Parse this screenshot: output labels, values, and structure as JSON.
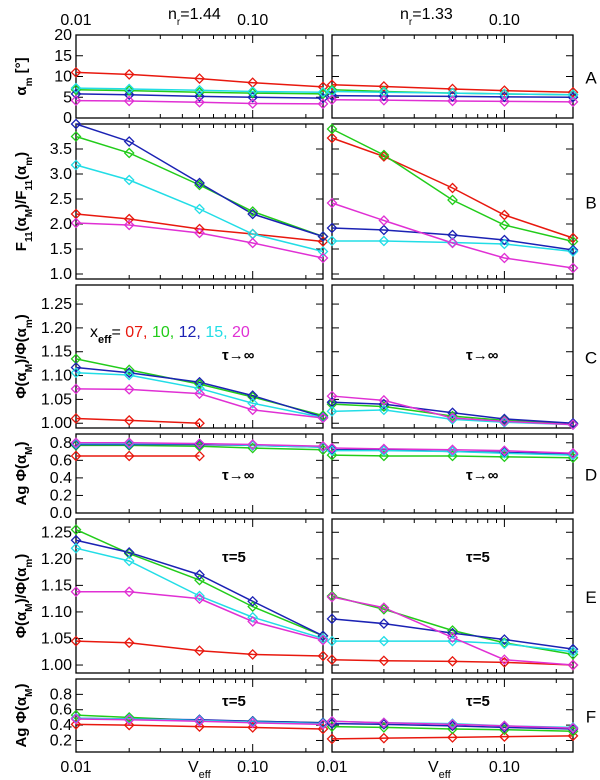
{
  "chart_data": {
    "type": "line",
    "x": [
      0.01,
      0.02,
      0.05,
      0.1,
      0.25
    ],
    "xscale": "log",
    "xlim": [
      0.01,
      0.25
    ],
    "xlabel_main": "V",
    "xlabel_sub": "eff",
    "xticks": [
      "0.01",
      "0.10"
    ],
    "columns": [
      {
        "label_main": "n",
        "label_sub": "r",
        "label_value": "=1.44"
      },
      {
        "label_main": "n",
        "label_sub": "r",
        "label_value": "=1.33"
      }
    ],
    "legend": {
      "prefix_main": "x",
      "prefix_sub": "eff",
      "prefix_eq": "=",
      "entries": [
        {
          "label": "07,",
          "color": "#e8180e"
        },
        {
          "label": "10,",
          "color": "#22cc1a"
        },
        {
          "label": "12,",
          "color": "#1b22b4"
        },
        {
          "label": "15,",
          "color": "#22dde6"
        },
        {
          "label": "20",
          "color": "#e030d4"
        }
      ]
    },
    "series_colors": [
      "#e8180e",
      "#22cc1a",
      "#1b22b4",
      "#22dde6",
      "#e030d4"
    ],
    "series_names": [
      "07",
      "10",
      "12",
      "15",
      "20"
    ],
    "panels": [
      {
        "letter": "A",
        "ylabel": "α_m [°]",
        "ylim": [
          0,
          20
        ],
        "yticks": [
          "0",
          "5",
          "10",
          "15",
          "20"
        ],
        "ytick_values": [
          0,
          5,
          10,
          15,
          20
        ],
        "annotation": "",
        "left": [
          [
            11.0,
            10.5,
            9.5,
            8.5,
            7.5
          ],
          [
            6.8,
            6.6,
            6.2,
            6.0,
            5.8
          ],
          [
            5.8,
            5.6,
            5.2,
            5.0,
            4.8
          ],
          [
            7.2,
            7.0,
            6.7,
            6.4,
            6.2
          ],
          [
            4.2,
            4.1,
            3.8,
            3.5,
            3.4
          ]
        ],
        "right": [
          [
            8.0,
            7.6,
            7.0,
            6.6,
            6.2
          ],
          [
            6.8,
            6.4,
            6.0,
            5.8,
            5.6
          ],
          [
            5.4,
            5.3,
            5.2,
            5.1,
            5.0
          ],
          [
            6.4,
            6.2,
            6.0,
            5.8,
            5.6
          ],
          [
            4.4,
            4.3,
            4.1,
            4.0,
            3.9
          ]
        ]
      },
      {
        "letter": "B",
        "ylabel": "F11(αM)/F11(αm)",
        "ylim": [
          0.9,
          4.0
        ],
        "yticks": [
          "1.0",
          "1.5",
          "2.0",
          "2.5",
          "3.0",
          "3.5"
        ],
        "ytick_values": [
          1.0,
          1.5,
          2.0,
          2.5,
          3.0,
          3.5
        ],
        "annotation": "",
        "left": [
          [
            2.2,
            2.1,
            1.9,
            1.8,
            1.65
          ],
          [
            3.75,
            3.42,
            2.78,
            2.25,
            1.75
          ],
          [
            4.0,
            3.65,
            2.82,
            2.2,
            1.75
          ],
          [
            3.18,
            2.88,
            2.3,
            1.8,
            1.45
          ],
          [
            2.02,
            1.98,
            1.82,
            1.62,
            1.32
          ]
        ],
        "right": [
          [
            3.72,
            3.35,
            2.72,
            2.18,
            1.72
          ],
          [
            3.9,
            3.38,
            2.48,
            1.98,
            1.65
          ],
          [
            1.92,
            1.88,
            1.78,
            1.68,
            1.48
          ],
          [
            1.66,
            1.66,
            1.63,
            1.6,
            1.45
          ],
          [
            2.42,
            2.07,
            1.62,
            1.32,
            1.12
          ]
        ]
      },
      {
        "letter": "C",
        "ylabel": "Φ(αM)/Φ(αm)",
        "ylim": [
          0.99,
          1.29
        ],
        "yticks": [
          "1.00",
          "1.05",
          "1.10",
          "1.15",
          "1.20",
          "1.25"
        ],
        "ytick_values": [
          1.0,
          1.05,
          1.1,
          1.15,
          1.2,
          1.25
        ],
        "annotation": "τ→∞",
        "left": [
          [
            1.01,
            1.006,
            1.0,
            null,
            null
          ],
          [
            1.135,
            1.112,
            1.082,
            1.055,
            1.016
          ],
          [
            1.117,
            1.106,
            1.086,
            1.058,
            1.013
          ],
          [
            1.106,
            1.101,
            1.073,
            1.042,
            1.012
          ],
          [
            1.072,
            1.071,
            1.062,
            1.028,
            1.011
          ]
        ],
        "right": [
          [
            null,
            null,
            null,
            null,
            null
          ],
          [
            1.04,
            1.035,
            1.015,
            1.006,
            0.999
          ],
          [
            1.044,
            1.04,
            1.022,
            1.009,
            1.0
          ],
          [
            1.025,
            1.028,
            1.008,
            1.002,
            0.997
          ],
          [
            1.057,
            1.048,
            1.011,
            1.004,
            0.997
          ]
        ]
      },
      {
        "letter": "D",
        "ylabel": "Ag Φ(αM)",
        "ylim": [
          0.0,
          0.9
        ],
        "yticks": [
          "0.0",
          "0.2",
          "0.4",
          "0.6",
          "0.8"
        ],
        "ytick_values": [
          0.0,
          0.2,
          0.4,
          0.6,
          0.8
        ],
        "annotation": "τ→∞",
        "left": [
          [
            0.65,
            0.65,
            0.65,
            null,
            null
          ],
          [
            0.77,
            0.77,
            0.76,
            0.74,
            0.72
          ],
          [
            0.78,
            0.78,
            0.78,
            0.77,
            0.75
          ],
          [
            0.79,
            0.79,
            0.79,
            0.77,
            0.75
          ],
          [
            0.8,
            0.8,
            0.79,
            0.78,
            0.76
          ]
        ],
        "right": [
          [
            null,
            null,
            null,
            null,
            null
          ],
          [
            0.66,
            0.65,
            0.65,
            0.64,
            0.63
          ],
          [
            0.72,
            0.72,
            0.7,
            0.69,
            0.67
          ],
          [
            0.71,
            0.71,
            0.7,
            0.68,
            0.66
          ],
          [
            0.74,
            0.73,
            0.72,
            0.71,
            0.68
          ]
        ]
      },
      {
        "letter": "E",
        "ylabel": "Φ(αM)/Φ(αm)",
        "ylim": [
          0.985,
          1.275
        ],
        "yticks": [
          "1.00",
          "1.05",
          "1.10",
          "1.15",
          "1.20",
          "1.25"
        ],
        "ytick_values": [
          1.0,
          1.05,
          1.1,
          1.15,
          1.2,
          1.25
        ],
        "annotation": "τ=5",
        "left": [
          [
            1.045,
            1.042,
            1.027,
            1.02,
            1.017
          ],
          [
            1.255,
            1.21,
            1.16,
            1.11,
            1.055
          ],
          [
            1.235,
            1.212,
            1.17,
            1.12,
            1.055
          ],
          [
            1.22,
            1.196,
            1.13,
            1.09,
            1.05
          ],
          [
            1.138,
            1.138,
            1.125,
            1.082,
            1.047
          ]
        ],
        "right": [
          [
            1.01,
            1.008,
            1.007,
            1.005,
            1.0
          ],
          [
            1.13,
            1.105,
            1.065,
            1.042,
            1.02
          ],
          [
            1.087,
            1.078,
            1.06,
            1.048,
            1.03
          ],
          [
            1.045,
            1.045,
            1.045,
            1.04,
            1.025
          ],
          [
            1.128,
            1.108,
            1.052,
            1.01,
            1.0
          ]
        ]
      },
      {
        "letter": "F",
        "ylabel": "Ag Φ(αM)",
        "ylim": [
          0.05,
          1.0
        ],
        "yticks": [
          "0.2",
          "0.4",
          "0.6",
          "0.8"
        ],
        "ytick_values": [
          0.2,
          0.4,
          0.6,
          0.8
        ],
        "annotation": "τ=5",
        "left": [
          [
            0.41,
            0.4,
            0.38,
            0.37,
            0.35
          ],
          [
            0.53,
            0.5,
            0.46,
            0.45,
            0.43
          ],
          [
            0.49,
            0.48,
            0.47,
            0.45,
            0.43
          ],
          [
            0.49,
            0.48,
            0.46,
            0.44,
            0.42
          ],
          [
            0.48,
            0.47,
            0.45,
            0.43,
            0.41
          ]
        ],
        "right": [
          [
            0.22,
            0.23,
            0.24,
            0.25,
            0.26
          ],
          [
            0.38,
            0.37,
            0.35,
            0.34,
            0.32
          ],
          [
            0.42,
            0.41,
            0.39,
            0.37,
            0.35
          ],
          [
            0.45,
            0.43,
            0.42,
            0.39,
            0.37
          ],
          [
            0.45,
            0.43,
            0.41,
            0.39,
            0.36
          ]
        ]
      }
    ]
  }
}
